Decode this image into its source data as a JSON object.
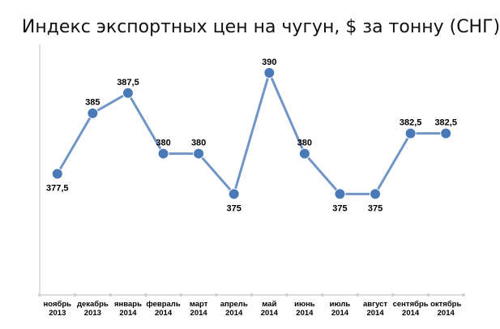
{
  "chart_data": {
    "type": "line",
    "title": "Индекс экспортных цен на чугун, $ за тонну (СНГ)",
    "xlabel": "",
    "ylabel": "",
    "categories": [
      [
        "ноябрь",
        "2013"
      ],
      [
        "декабрь",
        "2013"
      ],
      [
        "январь",
        "2014"
      ],
      [
        "февраль",
        "2014"
      ],
      [
        "март",
        "2014"
      ],
      [
        "апрель",
        "2014"
      ],
      [
        "май",
        "2014"
      ],
      [
        "июнь",
        "2014"
      ],
      [
        "июль",
        "2014"
      ],
      [
        "август",
        "2014"
      ],
      [
        "сентябрь",
        "2014"
      ],
      [
        "октябрь",
        "2014"
      ]
    ],
    "values": [
      377.5,
      385,
      387.5,
      380,
      380,
      375,
      390,
      380,
      375,
      375,
      382.5,
      382.5
    ],
    "value_labels": [
      "377,5",
      "385",
      "387,5",
      "380",
      "380",
      "375",
      "390",
      "380",
      "375",
      "375",
      "382,5",
      "382,5"
    ],
    "label_position": [
      "below",
      "above",
      "above",
      "above",
      "above",
      "below",
      "above",
      "above",
      "below",
      "below",
      "above",
      "above"
    ],
    "ylim": [
      362.5,
      393.5
    ],
    "grid": false,
    "legend": "none",
    "colors": {
      "line": "#7195c5",
      "marker": "#4a79b8",
      "axis": "#bfbfbf"
    }
  }
}
